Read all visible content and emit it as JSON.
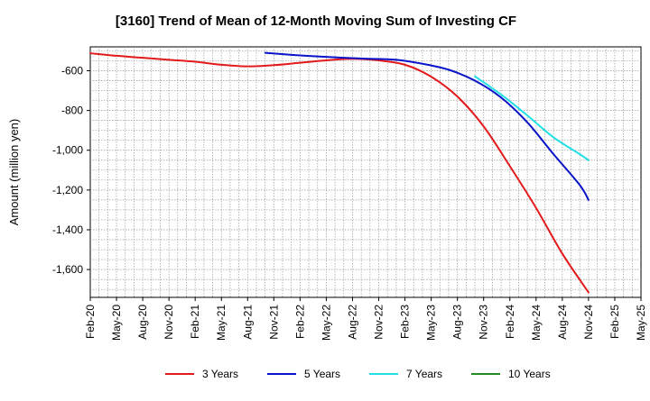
{
  "chart_data": {
    "type": "line",
    "title": "[3160]  Trend of Mean of 12-Month Moving Sum of Investing CF",
    "xlabel": "",
    "ylabel": "Amount (million yen)",
    "ylim": [
      -1740,
      -480
    ],
    "yticks": [
      -600,
      -800,
      -1000,
      -1200,
      -1400,
      -1600
    ],
    "ytick_labels": [
      "-600",
      "-800",
      "-1,000",
      "-1,200",
      "-1,400",
      "-1,600"
    ],
    "x_range_months": [
      0,
      63
    ],
    "xtick_labels": [
      "Feb-20",
      "May-20",
      "Aug-20",
      "Nov-20",
      "Feb-21",
      "May-21",
      "Aug-21",
      "Nov-21",
      "Feb-22",
      "May-22",
      "Aug-22",
      "Nov-22",
      "Feb-23",
      "May-23",
      "Aug-23",
      "Nov-23",
      "Feb-24",
      "May-24",
      "Aug-24",
      "Nov-24",
      "Feb-25",
      "May-25"
    ],
    "grid": true,
    "legend_position": "bottom",
    "series": [
      {
        "name": "3 Years",
        "color": "#e31a1c",
        "x": [
          0,
          3,
          6,
          9,
          12,
          15,
          18,
          21,
          24,
          27,
          30,
          33,
          36,
          39,
          42,
          45,
          48,
          51,
          54,
          57
        ],
        "values": [
          -512,
          -525,
          -535,
          -545,
          -555,
          -570,
          -578,
          -572,
          -560,
          -548,
          -540,
          -548,
          -570,
          -630,
          -730,
          -880,
          -1080,
          -1290,
          -1520,
          -1715
        ]
      },
      {
        "name": "5 Years",
        "color": "#0a14c8",
        "x": [
          20,
          23,
          26,
          29,
          32,
          35,
          38,
          41,
          44,
          47,
          50,
          53,
          56,
          57
        ],
        "values": [
          -510,
          -520,
          -528,
          -535,
          -540,
          -545,
          -565,
          -595,
          -650,
          -735,
          -860,
          -1020,
          -1175,
          -1250
        ]
      },
      {
        "name": "7 Years",
        "color": "#22e0e6",
        "x": [
          44,
          47,
          50,
          53,
          56,
          57
        ],
        "values": [
          -628,
          -720,
          -825,
          -935,
          -1020,
          -1050
        ]
      },
      {
        "name": "10 Years",
        "color": "#228b22",
        "x": [],
        "values": []
      }
    ]
  }
}
